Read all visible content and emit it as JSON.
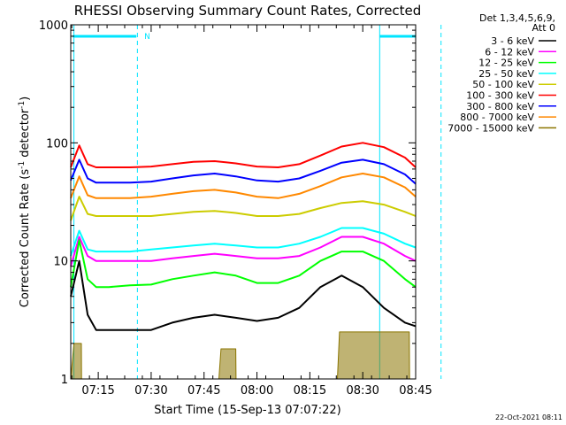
{
  "chart_data": {
    "type": "line",
    "title": "RHESSI Observing Summary Count Rates, Corrected",
    "xlabel": "Start Time (15-Sep-13 07:07:22)",
    "ylabel": "Corrected Count Rate (s⁻¹ detector⁻¹)",
    "ylabel_parts": [
      "Corrected Count Rate (s",
      "-1",
      " detector",
      "-1",
      ")"
    ],
    "yscale": "log",
    "ylim": [
      1,
      1000
    ],
    "yticks": [
      {
        "v": 1,
        "label": "1"
      },
      {
        "v": 10,
        "label": "10"
      },
      {
        "v": 100,
        "label": "100"
      },
      {
        "v": 1000,
        "label": "1000"
      }
    ],
    "xlim_min": [
      7.12,
      8.75
    ],
    "xticks": [
      {
        "v": 7.25,
        "label": "07:15"
      },
      {
        "v": 7.5,
        "label": "07:30"
      },
      {
        "v": 7.75,
        "label": "07:45"
      },
      {
        "v": 8.0,
        "label": "08:00"
      },
      {
        "v": 8.25,
        "label": "08:15"
      },
      {
        "v": 8.5,
        "label": "08:30"
      },
      {
        "v": 8.75,
        "label": "08:45"
      }
    ],
    "legend_header": [
      "Det 1,3,4,5,6,9,",
      "Att 0"
    ],
    "legend_position": "outside-right",
    "night_bars": [
      [
        7.13,
        7.43
      ],
      [
        8.58,
        8.88
      ]
    ],
    "night_label": "N",
    "dashed_markers": [
      7.435,
      8.87
    ],
    "solid_markers": [
      7.135,
      8.58
    ],
    "series": [
      {
        "name": "3 - 6 keV",
        "color": "#000000",
        "x": [
          7.12,
          7.16,
          7.2,
          7.24,
          7.3,
          7.4,
          7.5,
          7.6,
          7.7,
          7.8,
          7.9,
          8.0,
          8.1,
          8.2,
          8.3,
          8.4,
          8.5,
          8.6,
          8.7,
          8.75
        ],
        "y": [
          5,
          10,
          3.5,
          2.6,
          2.6,
          2.6,
          2.6,
          3,
          3.3,
          3.5,
          3.3,
          3.1,
          3.3,
          4,
          6,
          7.5,
          6,
          4,
          3,
          2.8
        ]
      },
      {
        "name": "6 - 12 keV",
        "color": "#ff00ff",
        "x": [
          7.12,
          7.16,
          7.2,
          7.24,
          7.3,
          7.4,
          7.5,
          7.6,
          7.7,
          7.8,
          7.9,
          8.0,
          8.1,
          8.2,
          8.3,
          8.4,
          8.5,
          8.6,
          8.7,
          8.75
        ],
        "y": [
          9,
          16,
          11,
          10,
          10,
          10,
          10,
          10.5,
          11,
          11.5,
          11,
          10.5,
          10.5,
          11,
          13,
          16,
          16,
          14,
          11,
          10
        ]
      },
      {
        "name": "12 - 25 keV",
        "color": "#00ff00",
        "x": [
          7.12,
          7.16,
          7.2,
          7.24,
          7.3,
          7.4,
          7.5,
          7.6,
          7.7,
          7.8,
          7.9,
          8.0,
          8.1,
          8.2,
          8.3,
          8.4,
          8.5,
          8.6,
          8.7,
          8.75
        ],
        "y": [
          6,
          15,
          7,
          6,
          6,
          6.2,
          6.3,
          7,
          7.5,
          8,
          7.5,
          6.5,
          6.5,
          7.5,
          10,
          12,
          12,
          10,
          7,
          6
        ]
      },
      {
        "name": "25 - 50 keV",
        "color": "#00ffff",
        "x": [
          7.12,
          7.16,
          7.2,
          7.24,
          7.3,
          7.4,
          7.5,
          7.6,
          7.7,
          7.8,
          7.9,
          8.0,
          8.1,
          8.2,
          8.3,
          8.4,
          8.5,
          8.6,
          8.7,
          8.75
        ],
        "y": [
          11,
          18,
          12.5,
          12,
          12,
          12,
          12.5,
          13,
          13.5,
          14,
          13.5,
          13,
          13,
          14,
          16,
          19,
          19,
          17,
          14,
          13
        ]
      },
      {
        "name": "50 - 100 keV",
        "color": "#cccc00",
        "x": [
          7.12,
          7.16,
          7.2,
          7.24,
          7.3,
          7.4,
          7.5,
          7.6,
          7.7,
          7.8,
          7.9,
          8.0,
          8.1,
          8.2,
          8.3,
          8.4,
          8.5,
          8.6,
          8.7,
          8.75
        ],
        "y": [
          22,
          35,
          25,
          24,
          24,
          24,
          24,
          25,
          26,
          26.5,
          25.5,
          24,
          24,
          25,
          28,
          31,
          32,
          30,
          26,
          24
        ]
      },
      {
        "name": "100 - 300 keV",
        "color": "#ff0000",
        "x": [
          7.12,
          7.16,
          7.2,
          7.24,
          7.3,
          7.4,
          7.5,
          7.6,
          7.7,
          7.8,
          7.9,
          8.0,
          8.1,
          8.2,
          8.3,
          8.4,
          8.5,
          8.6,
          8.7,
          8.75
        ],
        "y": [
          62,
          95,
          66,
          62,
          62,
          62,
          63,
          66,
          69,
          70,
          67,
          63,
          62,
          66,
          78,
          93,
          100,
          92,
          75,
          62
        ]
      },
      {
        "name": "300 - 800 keV",
        "color": "#0000ff",
        "x": [
          7.12,
          7.16,
          7.2,
          7.24,
          7.3,
          7.4,
          7.5,
          7.6,
          7.7,
          7.8,
          7.9,
          8.0,
          8.1,
          8.2,
          8.3,
          8.4,
          8.5,
          8.6,
          8.7,
          8.75
        ],
        "y": [
          48,
          72,
          50,
          46,
          46,
          46,
          47,
          50,
          53,
          55,
          52,
          48,
          47,
          50,
          58,
          68,
          72,
          66,
          54,
          45
        ]
      },
      {
        "name": "800 - 7000 keV",
        "color": "#ff8800",
        "x": [
          7.12,
          7.16,
          7.2,
          7.24,
          7.3,
          7.4,
          7.5,
          7.6,
          7.7,
          7.8,
          7.9,
          8.0,
          8.1,
          8.2,
          8.3,
          8.4,
          8.5,
          8.6,
          8.7,
          8.75
        ],
        "y": [
          34,
          52,
          36,
          34,
          34,
          34,
          35,
          37,
          39,
          40,
          38,
          35,
          34,
          37,
          43,
          51,
          55,
          51,
          42,
          35
        ]
      },
      {
        "name": "7000 - 15000 keV",
        "color": "#8b7500",
        "x": [
          7.12,
          7.135,
          7.17,
          7.171,
          7.82,
          7.83,
          7.9,
          7.901,
          8.38,
          8.39,
          8.72,
          8.721
        ],
        "y": [
          1,
          2,
          2,
          1,
          1,
          1.8,
          1.8,
          1,
          1,
          2.5,
          2.5,
          1
        ]
      }
    ]
  },
  "footer": {
    "timestamp": "22-Oct-2021 08:11"
  }
}
